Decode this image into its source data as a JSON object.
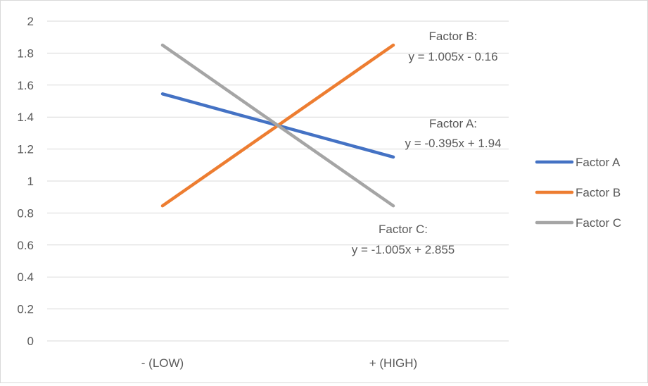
{
  "chart_data": {
    "type": "line",
    "title": "",
    "xlabel": "",
    "ylabel": "",
    "categories": [
      "- (LOW)",
      "+ (HIGH)"
    ],
    "ylim": [
      0,
      2
    ],
    "yticks": [
      "0",
      "0.2",
      "0.4",
      "0.6",
      "0.8",
      "1",
      "1.2",
      "1.4",
      "1.6",
      "1.8",
      "2"
    ],
    "grid": true,
    "legend_position": "right",
    "series": [
      {
        "name": "Factor A",
        "values": [
          1.545,
          1.15
        ],
        "color": "#4472c4"
      },
      {
        "name": "Factor B",
        "values": [
          0.845,
          1.85
        ],
        "color": "#ed7d31"
      },
      {
        "name": "Factor C",
        "values": [
          1.85,
          0.845
        ],
        "color": "#a5a5a5"
      }
    ],
    "annotations": [
      {
        "series": "Factor B",
        "line1": "Factor B:",
        "line2": "y = 1.005x - 0.16"
      },
      {
        "series": "Factor A",
        "line1": "Factor A:",
        "line2": "y = -0.395x + 1.94"
      },
      {
        "series": "Factor C",
        "line1": "Factor C:",
        "line2": "y = -1.005x + 2.855"
      }
    ]
  }
}
